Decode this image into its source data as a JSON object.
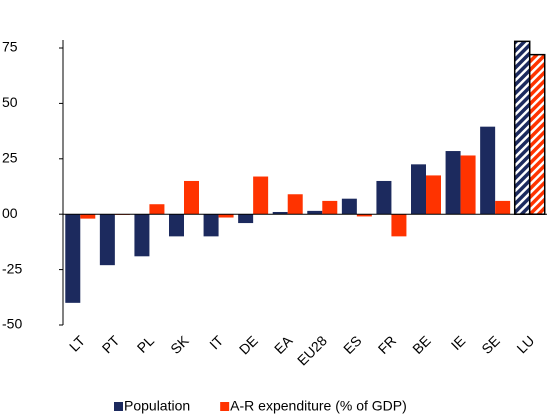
{
  "chart_data": {
    "type": "bar",
    "categories": [
      "LT",
      "PT",
      "PL",
      "SK",
      "IT",
      "DE",
      "EA",
      "EU28",
      "ES",
      "FR",
      "BE",
      "IE",
      "SE",
      "LU"
    ],
    "series": [
      {
        "name": "Population",
        "color": "#1c2a5e",
        "values": [
          -40,
          -23,
          -19,
          -10,
          -10,
          -4,
          1,
          1.5,
          7,
          15,
          22.5,
          28.5,
          39.5,
          78
        ]
      },
      {
        "name": "A-R expenditure (% of GDP)",
        "color": "#ff3300",
        "values": [
          -2,
          -0.3,
          4.5,
          15,
          -1.5,
          17,
          9,
          6,
          -1,
          -10,
          17.5,
          26.5,
          6,
          72
        ]
      }
    ],
    "ylim": [
      -50,
      75
    ],
    "yticks": [
      -50,
      -25,
      {
        "value": 0,
        "label": "00"
      },
      25,
      50,
      75
    ],
    "hatched_category_index": 13,
    "grid": false,
    "legend": "bottom"
  }
}
